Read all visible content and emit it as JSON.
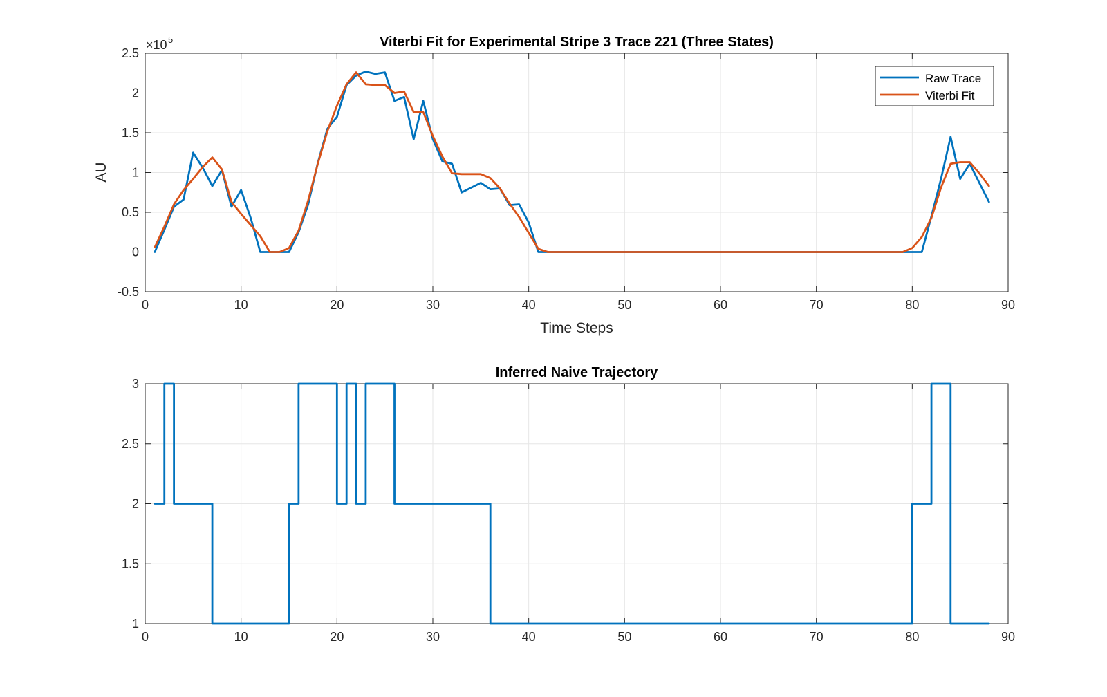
{
  "chart_data": [
    {
      "type": "line",
      "title": "Viterbi Fit for Experimental Stripe 3 Trace 221 (Three States)",
      "xlabel": "Time Steps",
      "ylabel": "AU",
      "y_exponent_base": "×10",
      "y_exponent_power": "5",
      "y_exponent": 5,
      "xlim": [
        0,
        90
      ],
      "ylim": [
        -0.5,
        2.5
      ],
      "x_ticks": [
        0,
        10,
        20,
        30,
        40,
        50,
        60,
        70,
        80,
        90
      ],
      "x_tick_labels": [
        "0",
        "10",
        "20",
        "30",
        "40",
        "50",
        "60",
        "70",
        "80",
        "90"
      ],
      "y_ticks": [
        -0.5,
        0,
        0.5,
        1,
        1.5,
        2,
        2.5
      ],
      "y_tick_labels": [
        "-0.5",
        "0",
        "0.5",
        "1",
        "1.5",
        "2",
        "2.5"
      ],
      "grid": true,
      "legend_position": "top-right",
      "series": [
        {
          "name": "Raw Trace",
          "color": "#0072BD",
          "x": [
            1,
            2,
            3,
            4,
            5,
            6,
            7,
            8,
            9,
            10,
            11,
            12,
            13,
            14,
            15,
            16,
            17,
            18,
            19,
            20,
            21,
            22,
            23,
            24,
            25,
            26,
            27,
            28,
            29,
            30,
            31,
            32,
            33,
            34,
            35,
            36,
            37,
            38,
            39,
            40,
            41,
            42,
            79,
            80,
            81,
            82,
            83,
            84,
            85,
            86,
            87,
            88
          ],
          "y": [
            0.0,
            0.28,
            0.57,
            0.66,
            1.25,
            1.06,
            0.83,
            1.03,
            0.57,
            0.78,
            0.43,
            0.0,
            0.0,
            0.0,
            0.0,
            0.25,
            0.6,
            1.12,
            1.55,
            1.7,
            2.1,
            2.22,
            2.27,
            2.24,
            2.26,
            1.9,
            1.95,
            1.42,
            1.9,
            1.42,
            1.14,
            1.11,
            0.75,
            0.81,
            0.87,
            0.79,
            0.8,
            0.59,
            0.6,
            0.37,
            0.0,
            0.0,
            0.0,
            0.0,
            0.0,
            0.45,
            0.92,
            1.45,
            0.92,
            1.11,
            0.87,
            0.63
          ]
        },
        {
          "name": "Viterbi Fit",
          "color": "#D95319",
          "x": [
            1,
            2,
            3,
            4,
            5,
            6,
            7,
            8,
            9,
            10,
            11,
            12,
            13,
            14,
            15,
            16,
            17,
            18,
            19,
            20,
            21,
            22,
            23,
            24,
            25,
            26,
            27,
            28,
            29,
            30,
            31,
            32,
            33,
            34,
            35,
            36,
            37,
            38,
            39,
            40,
            41,
            42,
            79,
            80,
            81,
            82,
            83,
            84,
            85,
            86,
            87,
            88
          ],
          "y": [
            0.06,
            0.32,
            0.6,
            0.78,
            0.92,
            1.07,
            1.19,
            1.04,
            0.63,
            0.48,
            0.34,
            0.2,
            0.0,
            0.0,
            0.05,
            0.27,
            0.65,
            1.11,
            1.52,
            1.84,
            2.11,
            2.26,
            2.11,
            2.1,
            2.1,
            2.0,
            2.02,
            1.76,
            1.76,
            1.46,
            1.2,
            0.99,
            0.98,
            0.98,
            0.98,
            0.93,
            0.8,
            0.61,
            0.44,
            0.24,
            0.04,
            0.0,
            0.0,
            0.05,
            0.19,
            0.43,
            0.81,
            1.11,
            1.13,
            1.13,
            0.99,
            0.83
          ]
        }
      ]
    },
    {
      "type": "line",
      "title": "Inferred Naive Trajectory",
      "xlabel": "",
      "ylabel": "",
      "xlim": [
        0,
        90
      ],
      "ylim": [
        1,
        3
      ],
      "x_ticks": [
        0,
        10,
        20,
        30,
        40,
        50,
        60,
        70,
        80,
        90
      ],
      "x_tick_labels": [
        "0",
        "10",
        "20",
        "30",
        "40",
        "50",
        "60",
        "70",
        "80",
        "90"
      ],
      "y_ticks": [
        1,
        1.5,
        2,
        2.5,
        3
      ],
      "y_tick_labels": [
        "1",
        "1.5",
        "2",
        "2.5",
        "3"
      ],
      "grid": true,
      "step": true,
      "series": [
        {
          "color": "#0072BD",
          "x": [
            1,
            2,
            3,
            4,
            5,
            6,
            7,
            8,
            9,
            10,
            11,
            12,
            13,
            14,
            15,
            16,
            17,
            18,
            19,
            20,
            21,
            22,
            23,
            24,
            25,
            26,
            27,
            28,
            29,
            30,
            31,
            32,
            33,
            34,
            35,
            36,
            37,
            38,
            39,
            40,
            41,
            42,
            43,
            44,
            45,
            46,
            47,
            48,
            49,
            50,
            51,
            52,
            53,
            54,
            55,
            56,
            57,
            58,
            59,
            60,
            61,
            62,
            63,
            64,
            65,
            66,
            67,
            68,
            69,
            70,
            71,
            72,
            73,
            74,
            75,
            76,
            77,
            78,
            79,
            80,
            81,
            82,
            83,
            84,
            85,
            86,
            87,
            88
          ],
          "y": [
            2,
            3,
            2,
            2,
            2,
            2,
            1,
            1,
            1,
            1,
            1,
            1,
            1,
            1,
            2,
            3,
            3,
            3,
            3,
            2,
            3,
            2,
            3,
            3,
            3,
            2,
            2,
            2,
            2,
            2,
            2,
            2,
            2,
            2,
            2,
            1,
            1,
            1,
            1,
            1,
            1,
            1,
            1,
            1,
            1,
            1,
            1,
            1,
            1,
            1,
            1,
            1,
            1,
            1,
            1,
            1,
            1,
            1,
            1,
            1,
            1,
            1,
            1,
            1,
            1,
            1,
            1,
            1,
            1,
            1,
            1,
            1,
            1,
            1,
            1,
            1,
            1,
            1,
            1,
            2,
            2,
            3,
            3,
            1,
            1,
            1,
            1,
            1
          ]
        }
      ]
    }
  ]
}
